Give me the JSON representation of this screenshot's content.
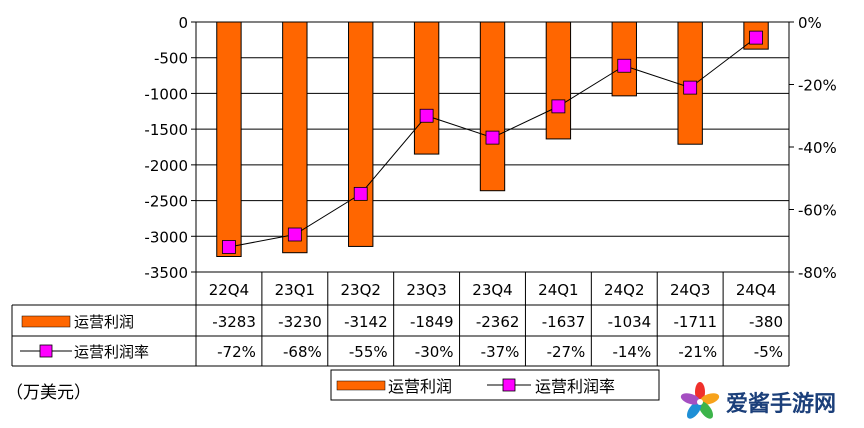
{
  "chart_data": {
    "type": "bar",
    "categories": [
      "22Q4",
      "23Q1",
      "23Q2",
      "23Q3",
      "23Q4",
      "24Q1",
      "24Q2",
      "24Q3",
      "24Q4"
    ],
    "series": [
      {
        "name": "运营利润",
        "kind": "bar",
        "axis": "left",
        "values": [
          -3283,
          -3230,
          -3142,
          -1849,
          -2362,
          -1637,
          -1034,
          -1711,
          -380
        ],
        "labels": [
          "-3283",
          "-3230",
          "-3142",
          "-1849",
          "-2362",
          "-1637",
          "-1034",
          "-1711",
          "-380"
        ],
        "color": "#ff6600"
      },
      {
        "name": "运营利润率",
        "kind": "line",
        "axis": "right",
        "values": [
          -72,
          -68,
          -55,
          -30,
          -37,
          -27,
          -14,
          -21,
          -5
        ],
        "labels": [
          "-72%",
          "-68%",
          "-55%",
          "-30%",
          "-37%",
          "-27%",
          "-14%",
          "-21%",
          "-5%"
        ],
        "color": "#ff00ff"
      }
    ],
    "y_left": {
      "range": [
        -3500,
        0
      ],
      "ticks": [
        "0",
        "-500",
        "-1000",
        "-1500",
        "-2000",
        "-2500",
        "-3000",
        "-3500"
      ]
    },
    "y_right": {
      "range": [
        -80,
        0
      ],
      "ticks": [
        "0%",
        "-20%",
        "-40%",
        "-60%",
        "-80%"
      ]
    },
    "grid": true,
    "legend": {
      "placement": "bottom",
      "items": [
        "运营利润",
        "运营利润率"
      ]
    },
    "unit_label": "（万美元）"
  },
  "watermark": {
    "text": "爱酱手游网"
  }
}
